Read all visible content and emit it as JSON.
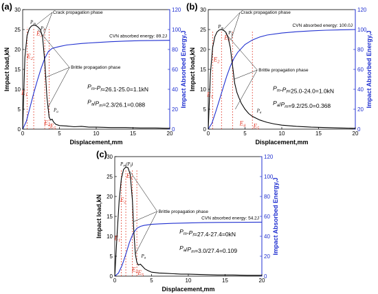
{
  "chart_data": [
    {
      "type": "line",
      "panel_label": "(a)",
      "xlabel": "Displacement,mm",
      "ylabel": "Impact load,kN",
      "y2label": "Impact Absorbed Energy,J",
      "xlim": [
        0,
        20
      ],
      "ylim": [
        0,
        30
      ],
      "y2lim": [
        0,
        120
      ],
      "xticks": [
        0,
        5,
        10,
        15,
        20
      ],
      "yticks": [
        0,
        5,
        10,
        15,
        20,
        25,
        30
      ],
      "y2ticks": [
        0,
        20,
        40,
        60,
        80,
        100,
        120
      ],
      "series": [
        {
          "axis": "left",
          "color": "#000000",
          "x": [
            0,
            0.3,
            0.6,
            0.9,
            1.2,
            1.5,
            1.8,
            2.1,
            2.4,
            2.7,
            3.0,
            3.3,
            3.6,
            3.8,
            4.0,
            4.2,
            4.5,
            5,
            6,
            7,
            8,
            9,
            10,
            12,
            14,
            16,
            18,
            20
          ],
          "y": [
            0,
            18.0,
            23.5,
            25.2,
            25.9,
            26.1,
            26.0,
            25.6,
            25.0,
            23.2,
            17.0,
            8.0,
            3.0,
            2.3,
            2.5,
            1.8,
            1.2,
            0.9,
            0.8,
            0.6,
            0.7,
            0.5,
            0.5,
            0.4,
            0.4,
            0.3,
            0.3,
            0.2
          ]
        },
        {
          "axis": "right",
          "color": "#1f2fd0",
          "x": [
            0,
            0.5,
            1,
            1.5,
            2,
            2.5,
            3,
            3.5,
            4,
            5,
            6,
            8,
            10,
            12,
            14,
            16,
            18,
            20
          ],
          "y": [
            0,
            8,
            22,
            36,
            49,
            61,
            71,
            78,
            81,
            83,
            84.5,
            86,
            87,
            87.8,
            88.4,
            88.8,
            89.0,
            89.2
          ]
        }
      ],
      "annotations": {
        "crack": "Crack propagation phase",
        "brittle": "Brittle propagation phase",
        "cvn": "CVN absorbed energy: 89.2J",
        "eq1": "Pm-Pf=26.1-25.0=1.1kN",
        "eq2": "Pa/Pm=2.3/26.1=0.088"
      }
    },
    {
      "type": "line",
      "panel_label": "(b)",
      "xlabel": "Displacement,mm",
      "ylabel": "Impact load,kN",
      "y2label": "Impact Absorbed Energy,J",
      "xlim": [
        0,
        20
      ],
      "ylim": [
        0,
        30
      ],
      "y2lim": [
        0,
        120
      ],
      "xticks": [
        0,
        5,
        10,
        15,
        20
      ],
      "yticks": [
        0,
        5,
        10,
        15,
        20,
        25,
        30
      ],
      "y2ticks": [
        0,
        20,
        40,
        60,
        80,
        100,
        120
      ],
      "series": [
        {
          "axis": "left",
          "color": "#000000",
          "x": [
            0,
            0.3,
            0.6,
            0.9,
            1.2,
            1.5,
            1.8,
            2.1,
            2.4,
            2.7,
            3.0,
            3.3,
            3.6,
            3.9,
            4.2,
            4.5,
            5,
            5.5,
            6,
            7,
            8,
            9,
            10,
            12,
            14,
            16,
            18,
            20
          ],
          "y": [
            0,
            14.0,
            20.5,
            23.2,
            24.4,
            24.9,
            25.0,
            24.8,
            24.3,
            23.0,
            20.5,
            16.0,
            11.5,
            9.2,
            7.8,
            6.5,
            5.0,
            3.9,
            3.2,
            2.3,
            1.7,
            1.3,
            1.0,
            0.7,
            0.5,
            0.4,
            0.3,
            0.2
          ]
        },
        {
          "axis": "right",
          "color": "#1f2fd0",
          "x": [
            0,
            0.5,
            1,
            1.5,
            2,
            2.5,
            3,
            3.5,
            4,
            5,
            6,
            7,
            8,
            10,
            12,
            14,
            16,
            18,
            20
          ],
          "y": [
            0,
            6,
            17,
            29,
            41,
            53,
            63,
            71,
            77,
            85,
            89.5,
            92.5,
            94.5,
            96.5,
            97.8,
            98.7,
            99.3,
            99.7,
            100.0
          ]
        }
      ],
      "annotations": {
        "crack": "Crack propagation phase",
        "brittle": "Brittle propagation phase",
        "cvn": "CVN absorbed energy: 100.0J",
        "eq1": "Pm-Pf=25.0-24.0=1.0kN",
        "eq2": "Pa/Pm=9.2/25.0=0.368"
      }
    },
    {
      "type": "line",
      "panel_label": "(c)",
      "xlabel": "Displacement,mm",
      "ylabel": "Impact load,kN",
      "y2label": "Impact Absorbed Energy,J",
      "xlim": [
        0,
        20
      ],
      "ylim": [
        0,
        30
      ],
      "y2lim": [
        0,
        120
      ],
      "xticks": [
        0,
        5,
        10,
        15,
        20
      ],
      "yticks": [
        0,
        5,
        10,
        15,
        20,
        25,
        30
      ],
      "y2ticks": [
        0,
        20,
        40,
        60,
        80,
        100,
        120
      ],
      "series": [
        {
          "axis": "left",
          "color": "#000000",
          "x": [
            0,
            0.3,
            0.6,
            0.9,
            1.2,
            1.5,
            1.8,
            2.1,
            2.4,
            2.6,
            2.8,
            3.0,
            3.2,
            3.5,
            3.8,
            4.1,
            4.5,
            5,
            6,
            7,
            8,
            9,
            10,
            12,
            14,
            16,
            18,
            20
          ],
          "y": [
            0,
            10.0,
            19.0,
            24.5,
            26.8,
            27.4,
            27.2,
            25.5,
            19.0,
            11.0,
            5.5,
            3.5,
            2.8,
            3.0,
            2.4,
            1.8,
            1.4,
            1.0,
            0.8,
            0.7,
            0.6,
            0.5,
            0.5,
            0.4,
            0.3,
            0.3,
            0.2,
            0.2
          ]
        },
        {
          "axis": "right",
          "color": "#1f2fd0",
          "x": [
            0,
            0.5,
            1,
            1.5,
            2,
            2.5,
            3,
            3.5,
            4,
            5,
            6,
            8,
            10,
            12,
            14,
            16,
            18,
            20
          ],
          "y": [
            0,
            3,
            11,
            22,
            34,
            43,
            48,
            50,
            51,
            52,
            52.5,
            53,
            53.4,
            53.7,
            53.9,
            54.0,
            54.1,
            54.2
          ]
        }
      ],
      "annotations": {
        "crack": "",
        "brittle": "Brittle propagation phase",
        "cvn": "CVN absorbed energy: 54.2J",
        "eq1": "Pm-Pf=27.4-27.4=0kN",
        "eq2": "Pa/Pm=3.0/27.4=0.109"
      }
    }
  ]
}
